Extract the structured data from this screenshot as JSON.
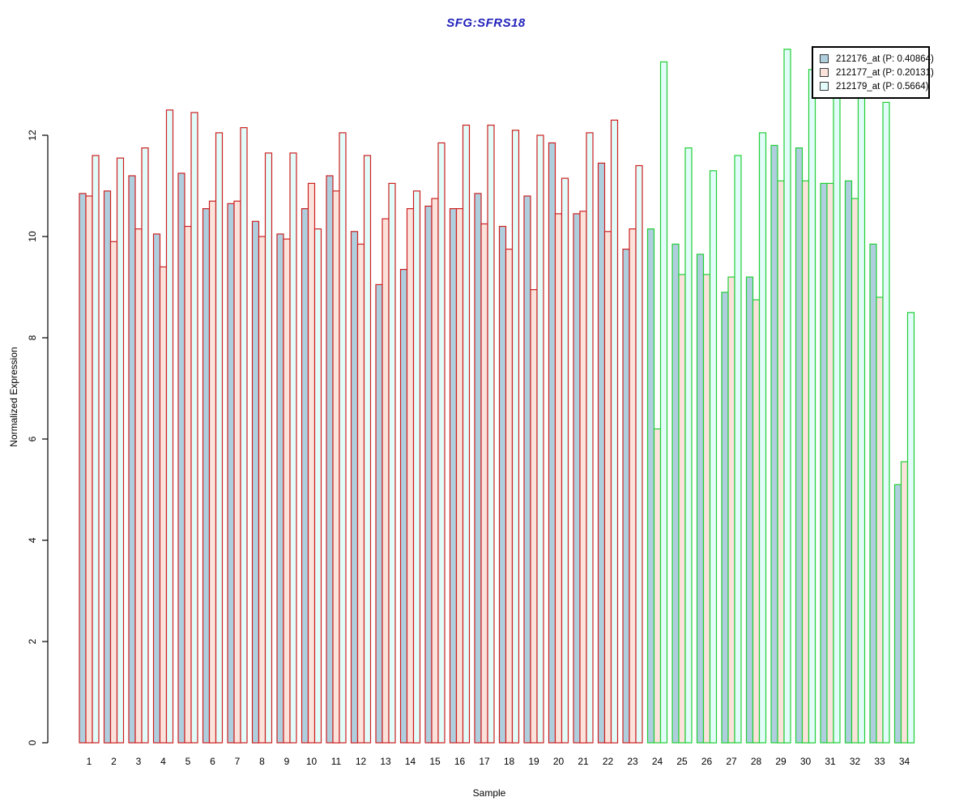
{
  "title": "SFG:SFRS18",
  "title_color": "#2222BB",
  "xlabel": "Sample",
  "ylabel": "Normalized Expression",
  "legend": {
    "position": "top-right",
    "items": [
      {
        "label": "212176_at (P: 0.40864)"
      },
      {
        "label": "212177_at (P: 0.20131)"
      },
      {
        "label": "212179_at (P: 0.5664)"
      }
    ]
  },
  "chart_data": {
    "type": "bar",
    "title": "SFG:SFRS18",
    "xlabel": "Sample",
    "ylabel": "Normalized Expression",
    "ylim": [
      0,
      12
    ],
    "yticks": [
      "0",
      "2",
      "4",
      "6",
      "8",
      "10",
      "12"
    ],
    "grid": false,
    "categories": [
      "1",
      "2",
      "3",
      "4",
      "5",
      "6",
      "7",
      "8",
      "9",
      "10",
      "11",
      "12",
      "13",
      "14",
      "15",
      "16",
      "17",
      "18",
      "19",
      "20",
      "21",
      "22",
      "23",
      "24",
      "25",
      "26",
      "27",
      "28",
      "29",
      "30",
      "31",
      "32",
      "33",
      "34"
    ],
    "group_outline_colors": {
      "samples_1_to_23": "#CC2020",
      "samples_24_to_34": "#21CE35"
    },
    "outline_split_index": 23,
    "series": [
      {
        "name": "212176_at (P: 0.40864)",
        "fill": "#AFCFDF",
        "values": [
          10.85,
          10.9,
          11.2,
          10.05,
          11.25,
          10.55,
          10.65,
          10.3,
          10.05,
          10.55,
          11.2,
          10.1,
          9.05,
          9.35,
          10.6,
          10.55,
          10.85,
          10.2,
          10.8,
          11.85,
          10.45,
          11.45,
          9.75,
          10.15,
          9.85,
          9.65,
          8.9,
          9.2,
          11.8,
          11.75,
          11.05,
          11.1,
          9.85,
          5.1
        ]
      },
      {
        "name": "212177_at (P: 0.20131)",
        "fill": "#FBE3DC",
        "values": [
          10.8,
          9.9,
          10.15,
          9.4,
          10.2,
          10.7,
          10.7,
          10.0,
          9.95,
          11.05,
          10.9,
          9.85,
          10.35,
          10.55,
          10.75,
          10.55,
          10.25,
          9.75,
          8.95,
          10.45,
          10.5,
          10.1,
          10.15,
          6.2,
          9.25,
          9.25,
          9.2,
          8.75,
          11.1,
          11.1,
          11.05,
          10.75,
          8.8,
          5.55
        ]
      },
      {
        "name": "212179_at (P: 0.5664)",
        "fill": "#E2FCFA",
        "values": [
          11.6,
          11.55,
          11.75,
          12.5,
          12.45,
          12.05,
          12.15,
          11.65,
          11.65,
          10.15,
          12.05,
          11.6,
          11.05,
          10.9,
          11.85,
          12.2,
          12.2,
          12.1,
          12.0,
          11.15,
          12.05,
          12.3,
          11.4,
          13.45,
          11.75,
          11.3,
          11.6,
          12.05,
          13.7,
          13.3,
          13.0,
          12.9,
          12.65,
          8.5
        ]
      }
    ]
  }
}
